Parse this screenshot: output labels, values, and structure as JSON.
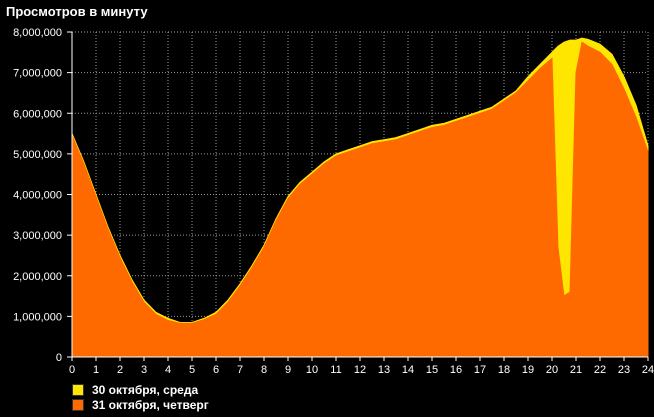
{
  "chart_data": {
    "type": "area",
    "title": "Просмотров в минуту",
    "xlabel": "",
    "ylabel": "",
    "xlim": [
      0,
      24
    ],
    "ylim": [
      0,
      8000000
    ],
    "grid": true,
    "legend_position": "bottom-left",
    "x_ticks": [
      "0",
      "1",
      "2",
      "3",
      "4",
      "5",
      "6",
      "7",
      "8",
      "9",
      "10",
      "11",
      "12",
      "13",
      "14",
      "15",
      "16",
      "17",
      "18",
      "19",
      "20",
      "21",
      "22",
      "23",
      "24"
    ],
    "y_ticks": [
      "0",
      "1,000,000",
      "2,000,000",
      "3,000,000",
      "4,000,000",
      "5,000,000",
      "6,000,000",
      "7,000,000",
      "8,000,000"
    ],
    "x": [
      0,
      0.5,
      1,
      1.5,
      2,
      2.5,
      3,
      3.5,
      4,
      4.5,
      5,
      5.5,
      6,
      6.5,
      7,
      7.5,
      8,
      8.5,
      9,
      9.5,
      10,
      10.5,
      11,
      11.5,
      12,
      12.5,
      13,
      13.5,
      14,
      14.5,
      15,
      15.5,
      16,
      16.5,
      17,
      17.5,
      18,
      18.5,
      19,
      19.5,
      20,
      20.25,
      20.5,
      20.75,
      21,
      21.25,
      21.5,
      22,
      22.5,
      23,
      23.5,
      24
    ],
    "series": [
      {
        "name": "30 октября, среда",
        "color": "#ffe600",
        "values": [
          5500000,
          4800000,
          4000000,
          3200000,
          2500000,
          1900000,
          1400000,
          1100000,
          950000,
          850000,
          850000,
          950000,
          1100000,
          1400000,
          1800000,
          2250000,
          2750000,
          3400000,
          3950000,
          4300000,
          4550000,
          4800000,
          5000000,
          5100000,
          5200000,
          5300000,
          5350000,
          5400000,
          5500000,
          5600000,
          5700000,
          5750000,
          5850000,
          5950000,
          6050000,
          6150000,
          6350000,
          6550000,
          6900000,
          7200000,
          7500000,
          7650000,
          7750000,
          7800000,
          7800000,
          7850000,
          7820000,
          7700000,
          7450000,
          6900000,
          6200000,
          5200000
        ]
      },
      {
        "name": "31 октября, четверг",
        "color": "#ff6a00",
        "values": [
          5450000,
          4750000,
          3950000,
          3150000,
          2450000,
          1850000,
          1350000,
          1050000,
          900000,
          830000,
          830000,
          920000,
          1050000,
          1350000,
          1750000,
          2200000,
          2700000,
          3350000,
          3900000,
          4250000,
          4500000,
          4750000,
          4950000,
          5050000,
          5150000,
          5250000,
          5300000,
          5350000,
          5450000,
          5550000,
          5650000,
          5700000,
          5800000,
          5900000,
          6000000,
          6100000,
          6300000,
          6500000,
          6800000,
          7100000,
          7350000,
          2700000,
          1500000,
          1600000,
          7000000,
          7750000,
          7650000,
          7500000,
          7200000,
          6600000,
          5900000,
          5050000
        ]
      }
    ]
  }
}
